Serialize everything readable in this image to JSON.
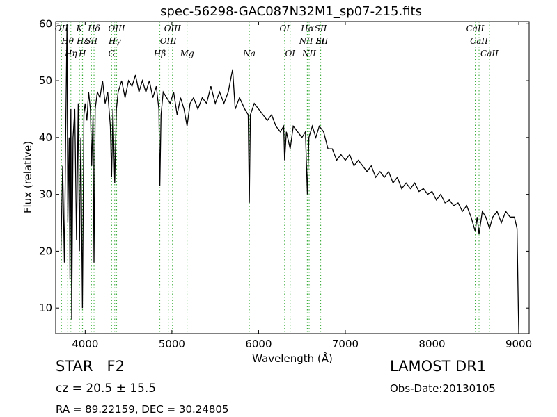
{
  "chart_data": {
    "type": "line",
    "title": "spec-56298-GAC087N32M1_sp07-215.fits",
    "xlabel": "Wavelength (Å)",
    "ylabel": "Flux (relative)",
    "annotations": {
      "class": "STAR   F2",
      "cz": "cz = 20.5 ± 15.5",
      "coords": "RA = 89.22159, DEC = 30.24805",
      "survey": "LAMOST DR1",
      "date": "Obs-Date:20130105"
    },
    "xlim": [
      3660,
      9120
    ],
    "ylim": [
      5.5,
      60.4
    ],
    "xticks": [
      4000,
      5000,
      6000,
      7000,
      8000,
      9000
    ],
    "yticks": [
      10,
      20,
      30,
      40,
      50,
      60
    ],
    "line_color": "#000000",
    "marker_color": "#33aa33",
    "x": [
      3720,
      3740,
      3760,
      3775,
      3790,
      3800,
      3815,
      3825,
      3835,
      3845,
      3860,
      3880,
      3900,
      3920,
      3934,
      3950,
      3968,
      3985,
      4000,
      4020,
      4040,
      4060,
      4075,
      4090,
      4102,
      4115,
      4140,
      4170,
      4200,
      4230,
      4260,
      4290,
      4305,
      4320,
      4341,
      4360,
      4380,
      4420,
      4460,
      4500,
      4540,
      4580,
      4620,
      4660,
      4700,
      4740,
      4780,
      4820,
      4850,
      4861,
      4875,
      4900,
      4940,
      4980,
      5020,
      5060,
      5100,
      5140,
      5175,
      5210,
      5250,
      5300,
      5350,
      5400,
      5450,
      5500,
      5550,
      5600,
      5650,
      5700,
      5730,
      5780,
      5840,
      5880,
      5893,
      5905,
      5950,
      6000,
      6050,
      6100,
      6150,
      6200,
      6250,
      6290,
      6300,
      6320,
      6364,
      6400,
      6450,
      6500,
      6540,
      6563,
      6580,
      6620,
      6660,
      6700,
      6750,
      6800,
      6850,
      6900,
      6950,
      7000,
      7050,
      7100,
      7150,
      7200,
      7250,
      7300,
      7350,
      7400,
      7450,
      7500,
      7550,
      7600,
      7650,
      7700,
      7750,
      7800,
      7850,
      7900,
      7950,
      8000,
      8050,
      8100,
      8150,
      8200,
      8250,
      8300,
      8350,
      8400,
      8450,
      8498,
      8520,
      8542,
      8580,
      8620,
      8662,
      8700,
      8750,
      8800,
      8850,
      8900,
      8950,
      8980,
      8995,
      9000
    ],
    "values": [
      20,
      35,
      18,
      40,
      60,
      25,
      40,
      15,
      45,
      8,
      40,
      45,
      22,
      46,
      20,
      40,
      10,
      44,
      46,
      43,
      48,
      45,
      35,
      44,
      18,
      45,
      48,
      47,
      50,
      46,
      48,
      42,
      33,
      45,
      32,
      45,
      48,
      50,
      47,
      50,
      49,
      51,
      48,
      50,
      48,
      50,
      47,
      49,
      45,
      31.5,
      44,
      48,
      47,
      46,
      48,
      44,
      47,
      45,
      42,
      46,
      47,
      45,
      47,
      46,
      49,
      46,
      48,
      46,
      48,
      52,
      45,
      47,
      45,
      44,
      28.5,
      44,
      46,
      45,
      44,
      43,
      44,
      42,
      41,
      42,
      36,
      41,
      38,
      42,
      41,
      40,
      41,
      30,
      40,
      42,
      40,
      42,
      41,
      38,
      38,
      36,
      37,
      36,
      37,
      35,
      36,
      35,
      34,
      35,
      33,
      34,
      33,
      34,
      32,
      33,
      31,
      32,
      31,
      32,
      30.5,
      31,
      30,
      30.5,
      29,
      30,
      28.5,
      29,
      28,
      28.5,
      27,
      28,
      26,
      23.5,
      26,
      23,
      27,
      26,
      24,
      26,
      27,
      25,
      27,
      26,
      26,
      24,
      10,
      5.5
    ],
    "lines": [
      {
        "label": "OII",
        "x": 3727
      },
      {
        "label": "Hθ",
        "x": 3798
      },
      {
        "label": "Hη",
        "x": 3835
      },
      {
        "label": "K",
        "x": 3934
      },
      {
        "label": "Hε",
        "x": 3970
      },
      {
        "label": "H",
        "x": 3968
      },
      {
        "label": "Hδ",
        "x": 4102
      },
      {
        "label": "SII",
        "x": 4072
      },
      {
        "label": "G",
        "x": 4305
      },
      {
        "label": "OIII",
        "x": 4363
      },
      {
        "label": "Hγ",
        "x": 4341
      },
      {
        "label": "Hβ",
        "x": 4861
      },
      {
        "label": "OIII",
        "x": 5007
      },
      {
        "label": "OIII",
        "x": 4959
      },
      {
        "label": "Mg",
        "x": 5175
      },
      {
        "label": "OI",
        "x": 6300
      },
      {
        "label": "NII",
        "x": 6548
      },
      {
        "label": "Na",
        "x": 5893
      },
      {
        "label": "Hα",
        "x": 6563
      },
      {
        "label": "Li",
        "x": 6708
      },
      {
        "label": "OI",
        "x": 6364
      },
      {
        "label": "SII",
        "x": 6716
      },
      {
        "label": "CaII",
        "x": 8542
      },
      {
        "label": "NII",
        "x": 6583
      },
      {
        "label": "CaII",
        "x": 8498
      },
      {
        "label": "SII",
        "x": 6731
      },
      {
        "label": "CaII",
        "x": 8662
      }
    ]
  }
}
